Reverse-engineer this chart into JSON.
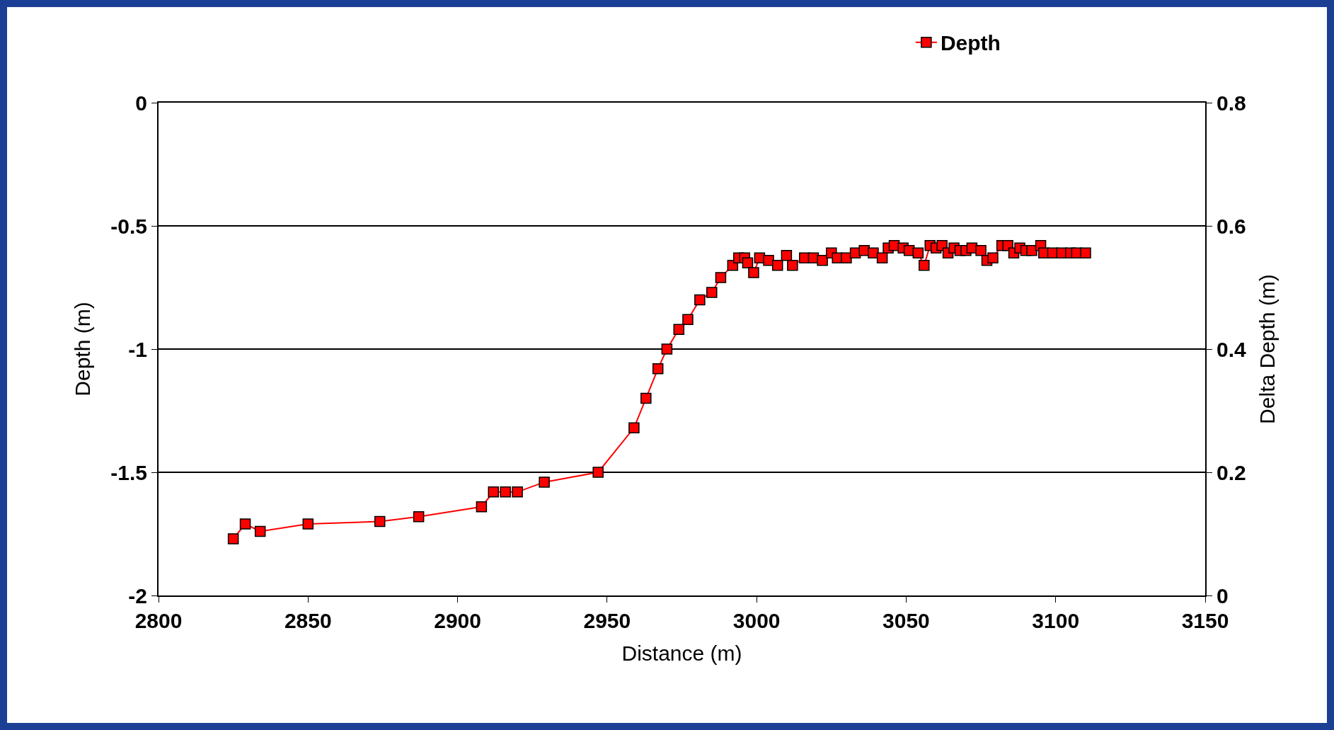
{
  "chart_data": {
    "type": "line",
    "xlabel": "Distance (m)",
    "ylabel": "Depth (m)",
    "y2label": "Delta Depth (m)",
    "xlim": [
      2800,
      3150
    ],
    "xticks": [
      2800,
      2850,
      2900,
      2950,
      3000,
      3050,
      3100,
      3150
    ],
    "ylim": [
      -2,
      0
    ],
    "yticks": [
      -2,
      -1.5,
      -1,
      -0.5,
      0
    ],
    "y2lim": [
      0,
      0.8
    ],
    "y2ticks": [
      0,
      0.2,
      0.4,
      0.6,
      0.8
    ],
    "grid": "y",
    "legend": "top right",
    "marker": "square",
    "line_style": "solid",
    "series": [
      {
        "name": "Depth",
        "color": "#ff0000",
        "x": [
          2825,
          2829,
          2834,
          2850,
          2874,
          2887,
          2908,
          2912,
          2916,
          2920,
          2929,
          2947,
          2959,
          2963,
          2967,
          2970,
          2974,
          2977,
          2981,
          2985,
          2988,
          2992,
          2994,
          2996,
          2997,
          2999,
          3001,
          3004,
          3007,
          3010,
          3012,
          3016,
          3019,
          3022,
          3025,
          3027,
          3030,
          3033,
          3036,
          3039,
          3042,
          3044,
          3046,
          3049,
          3051,
          3054,
          3056,
          3058,
          3060,
          3062,
          3064,
          3066,
          3068,
          3070,
          3072,
          3075,
          3077,
          3079,
          3082,
          3084,
          3086,
          3088,
          3090,
          3092,
          3095,
          3096,
          3099,
          3102,
          3105,
          3107,
          3110
        ],
        "values": [
          -1.77,
          -1.71,
          -1.74,
          -1.71,
          -1.7,
          -1.68,
          -1.64,
          -1.58,
          -1.58,
          -1.58,
          -1.54,
          -1.5,
          -1.32,
          -1.2,
          -1.08,
          -1.0,
          -0.92,
          -0.88,
          -0.8,
          -0.77,
          -0.71,
          -0.66,
          -0.63,
          -0.63,
          -0.65,
          -0.69,
          -0.63,
          -0.64,
          -0.66,
          -0.62,
          -0.66,
          -0.63,
          -0.63,
          -0.64,
          -0.61,
          -0.63,
          -0.63,
          -0.61,
          -0.6,
          -0.61,
          -0.63,
          -0.59,
          -0.58,
          -0.59,
          -0.6,
          -0.61,
          -0.66,
          -0.58,
          -0.59,
          -0.58,
          -0.61,
          -0.59,
          -0.6,
          -0.6,
          -0.59,
          -0.6,
          -0.64,
          -0.63,
          -0.58,
          -0.58,
          -0.61,
          -0.59,
          -0.6,
          -0.6,
          -0.58,
          -0.61,
          -0.61,
          -0.61,
          -0.61,
          -0.61,
          -0.61
        ]
      }
    ]
  }
}
